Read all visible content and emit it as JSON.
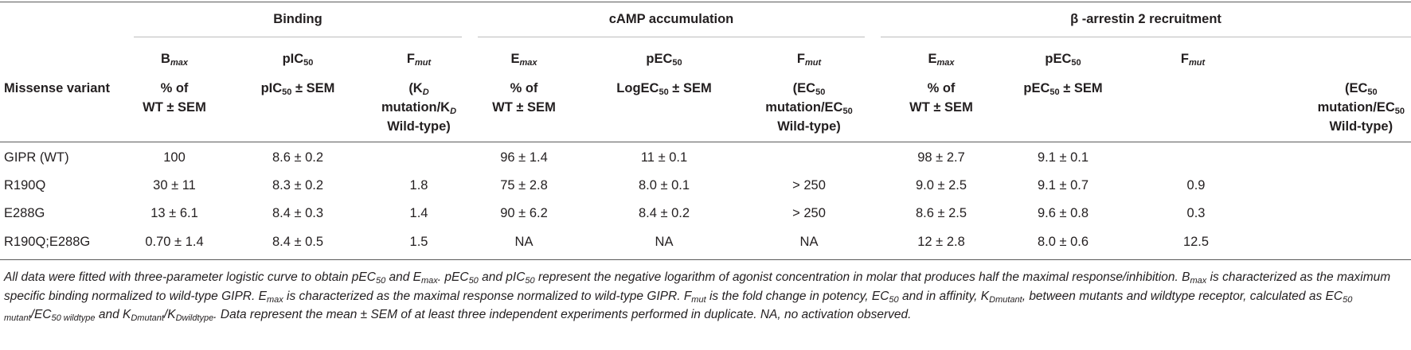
{
  "groups": {
    "binding": "Binding",
    "camp": "cAMP accumulation",
    "arrestin": "β -arrestin 2 recruitment"
  },
  "subheads": {
    "b_bmax": {
      "main": "B",
      "sub": "max"
    },
    "b_pic50": {
      "main": "pIC",
      "sub": "50"
    },
    "b_fmut": {
      "main": "F",
      "sub": "mut"
    },
    "c_emax": {
      "main": "E",
      "sub": "max"
    },
    "c_pec50": {
      "main": "pEC",
      "sub": "50"
    },
    "c_fmut": {
      "main": "F",
      "sub": "mut"
    },
    "a_emax": {
      "main": "E",
      "sub": "max"
    },
    "a_pec50": {
      "main": "pEC",
      "sub": "50"
    },
    "a_fmut": {
      "main": "F",
      "sub": "mut"
    }
  },
  "units": {
    "variant_label": "Missense variant",
    "b_bmax": {
      "l1": "% of",
      "l2": "WT ± SEM"
    },
    "b_pic50": {
      "pre": "pIC",
      "sub": "50",
      "post": " ± SEM"
    },
    "b_fmut": {
      "l1a": "(K",
      "l1sub": "D",
      "l2a": "mutation/K",
      "l2sub": "D",
      "l3": "Wild-type)"
    },
    "c_emax": {
      "l1": "% of",
      "l2": "WT ± SEM"
    },
    "c_pec50": {
      "pre": "LogEC",
      "sub": "50",
      "post": " ± SEM"
    },
    "c_fmut": {
      "l1a": "(EC",
      "l1sub": "50",
      "l2a": "mutation/EC",
      "l2sub": "50",
      "l3": "Wild-type)"
    },
    "a_emax": {
      "l1": "% of",
      "l2": "WT ± SEM"
    },
    "a_pec50": {
      "pre": "pEC",
      "sub": "50",
      "post": " ± SEM"
    },
    "a_fmut": {
      "l1a": "(EC",
      "l1sub": "50",
      "l2a": "mutation/EC",
      "l2sub": "50",
      "l3": "Wild-type)"
    }
  },
  "rows": [
    {
      "variant": "GIPR (WT)",
      "bmax": "100",
      "pic50": "8.6 ± 0.2",
      "b_fmut": "",
      "c_emax": "96 ± 1.4",
      "c_pec50": "11 ± 0.1",
      "c_fmut": "",
      "a_emax": "98 ± 2.7",
      "a_pec50": "9.1 ± 0.1",
      "a_fmut": ""
    },
    {
      "variant": "R190Q",
      "bmax": "30 ± 11",
      "pic50": "8.3 ± 0.2",
      "b_fmut": "1.8",
      "c_emax": "75 ± 2.8",
      "c_pec50": "8.0 ± 0.1",
      "c_fmut": "> 250",
      "a_emax": "9.0 ± 2.5",
      "a_pec50": "9.1 ± 0.7",
      "a_fmut": "0.9"
    },
    {
      "variant": "E288G",
      "bmax": "13 ± 6.1",
      "pic50": "8.4 ± 0.3",
      "b_fmut": "1.4",
      "c_emax": "90 ± 6.2",
      "c_pec50": "8.4 ± 0.2",
      "c_fmut": "> 250",
      "a_emax": "8.6 ± 2.5",
      "a_pec50": "9.6 ± 0.8",
      "a_fmut": "0.3"
    },
    {
      "variant": "R190Q;E288G",
      "bmax": "0.70 ± 1.4",
      "pic50": "8.4 ± 0.5",
      "b_fmut": "1.5",
      "c_emax": "NA",
      "c_pec50": "NA",
      "c_fmut": "NA",
      "a_emax": "12 ± 2.8",
      "a_pec50": "8.0 ± 0.6",
      "a_fmut": "12.5"
    }
  ],
  "footnote": [
    {
      "t": "All data were fitted with three-parameter logistic curve to obtain pEC"
    },
    {
      "s": "50"
    },
    {
      "t": " and E"
    },
    {
      "s": "max"
    },
    {
      "t": ". pEC"
    },
    {
      "s": "50"
    },
    {
      "t": " and pIC"
    },
    {
      "s": "50"
    },
    {
      "t": " represent the negative logarithm of agonist concentration in molar that produces half the maximal response/inhibition. B"
    },
    {
      "s": "max"
    },
    {
      "t": " is characterized as the maximum specific binding normalized to wild-type GIPR. E"
    },
    {
      "s": "max"
    },
    {
      "t": " is characterized as the maximal response normalized to wild-type GIPR. F"
    },
    {
      "s": "mut"
    },
    {
      "t": " is the fold change in potency, EC"
    },
    {
      "s": "50"
    },
    {
      "t": " and in affinity, K"
    },
    {
      "s": "Dmutant"
    },
    {
      "t": ", between mutants and wildtype receptor, calculated as EC"
    },
    {
      "s": "50 mutant"
    },
    {
      "t": "/EC"
    },
    {
      "s": "50 wildtype"
    },
    {
      "t": " and K"
    },
    {
      "s": "Dmutant"
    },
    {
      "t": "/K"
    },
    {
      "s": "Dwildtype"
    },
    {
      "t": ". Data represent the mean ± SEM of at least three independent experiments performed in duplicate. NA, no activation observed."
    }
  ]
}
